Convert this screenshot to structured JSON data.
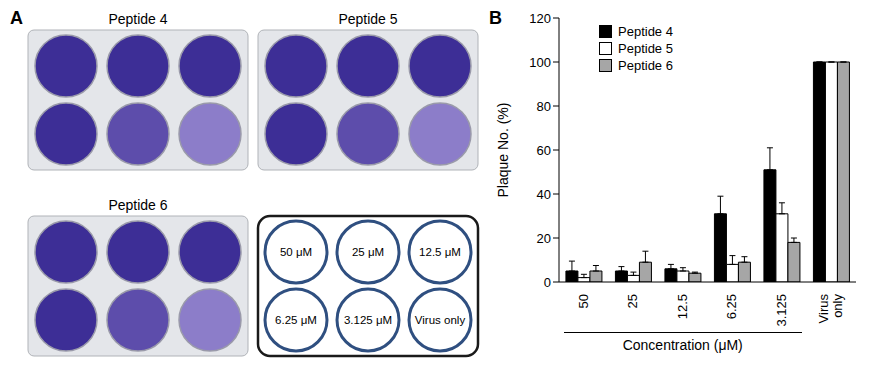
{
  "panel_a": {
    "label": "A",
    "plates": [
      {
        "title": "Peptide 4"
      },
      {
        "title": "Peptide 5"
      },
      {
        "title": "Peptide 6"
      }
    ],
    "legend_wells": [
      "50 μM",
      "25 μM",
      "12.5 μM",
      "6.25 μM",
      "3.125 μM",
      "Virus only"
    ]
  },
  "chart_data": {
    "panel_label": "B",
    "type": "bar",
    "categories": [
      "50",
      "25",
      "12.5",
      "6.25",
      "3.125",
      "Virus only"
    ],
    "x_label": "Concentration (μM)",
    "y_label": "Plaque No. (%)",
    "ylim": [
      0,
      120
    ],
    "yticks": [
      0,
      20,
      40,
      60,
      80,
      100,
      120
    ],
    "legend": "top-left",
    "series": [
      {
        "name": "Peptide 4",
        "color": "#000000",
        "values": [
          5,
          5,
          6,
          31,
          51,
          100
        ],
        "errors": [
          4.5,
          2,
          2,
          8,
          10,
          0
        ]
      },
      {
        "name": "Peptide 5",
        "color": "#ffffff",
        "values": [
          2,
          3,
          5,
          8,
          31,
          100
        ],
        "errors": [
          1.5,
          1.5,
          1.5,
          4,
          5,
          0
        ]
      },
      {
        "name": "Peptide 6",
        "color": "#a6a6a6",
        "values": [
          5,
          9,
          4,
          9,
          18,
          100
        ],
        "errors": [
          2.5,
          5,
          0.5,
          2.5,
          2,
          0
        ]
      }
    ]
  }
}
